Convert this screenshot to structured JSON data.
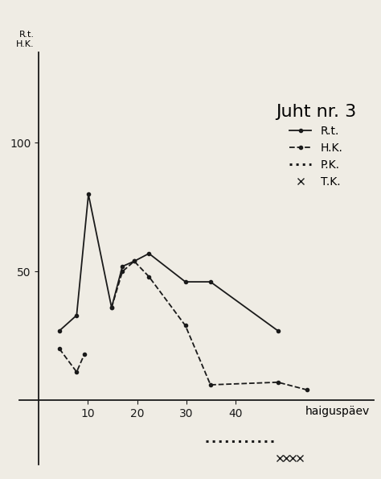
{
  "chart_data": {
    "type": "line",
    "ylabel": "R.t.\nH.K.",
    "xlabel": "haiguspäev",
    "legend_title": "Juht nr. 3",
    "legend": "upper right",
    "xlim": [
      -4,
      68
    ],
    "ylim": [
      -25,
      135
    ],
    "xticks": [
      10,
      20,
      30,
      40
    ],
    "yticks": [
      50,
      100
    ],
    "series": [
      {
        "name": "R.t.",
        "color": "#1a1a1a",
        "line_style": "solid",
        "marker": "o",
        "x": [
          4.2,
          7.7,
          10.1,
          14.8,
          17.0,
          19.4,
          22.4,
          29.8,
          34.9,
          48.6
        ],
        "values": [
          27,
          33,
          80,
          36,
          52,
          54,
          57,
          46,
          46,
          27
        ]
      },
      {
        "name": "H.K.",
        "color": "#1a1a1a",
        "line_style": "dashed",
        "marker": "o",
        "x": [
          4.2,
          7.7,
          9.3,
          12.0,
          14.8,
          17.0,
          19.4,
          22.4,
          29.8,
          34.9,
          48.6,
          54.6
        ],
        "values": [
          20,
          11,
          18,
          null,
          36,
          50,
          54,
          48,
          29,
          6,
          7,
          4
        ]
      },
      {
        "name": "P.K.",
        "color": "#1a1a1a",
        "line_style": "dotted",
        "marker": "none",
        "x": [
          34,
          48
        ],
        "values": [
          -16,
          -16
        ]
      },
      {
        "name": "T.K.",
        "color": "#1a1a1a",
        "line_style": "none",
        "marker": "x",
        "x": [
          49,
          50.3,
          51.6,
          53
        ],
        "values": [
          -22.5,
          -22.5,
          -22.5,
          -22.5
        ]
      }
    ]
  }
}
